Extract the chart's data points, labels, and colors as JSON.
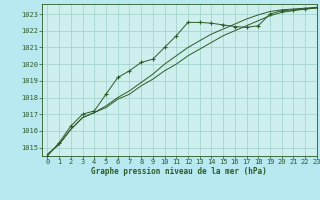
{
  "title": "Graphe pression niveau de la mer (hPa)",
  "bg_color": "#b8e8f0",
  "plot_bg_color": "#cdf0ee",
  "grid_color": "#9ecfca",
  "line_color": "#2d5a27",
  "xlim": [
    -0.5,
    23
  ],
  "ylim": [
    1014.5,
    1023.6
  ],
  "xticks": [
    0,
    1,
    2,
    3,
    4,
    5,
    6,
    7,
    8,
    9,
    10,
    11,
    12,
    13,
    14,
    15,
    16,
    17,
    18,
    19,
    20,
    21,
    22,
    23
  ],
  "yticks": [
    1015,
    1016,
    1017,
    1018,
    1019,
    1020,
    1021,
    1022,
    1023
  ],
  "series1_x": [
    0,
    1,
    2,
    3,
    4,
    5,
    6,
    7,
    8,
    9,
    10,
    11,
    12,
    13,
    14,
    15,
    16,
    17,
    18,
    19,
    20,
    21,
    22,
    23
  ],
  "series1_y": [
    1014.6,
    1015.2,
    1016.1,
    1016.8,
    1017.1,
    1017.4,
    1017.9,
    1018.2,
    1018.7,
    1019.1,
    1019.6,
    1020.0,
    1020.5,
    1020.9,
    1021.3,
    1021.7,
    1022.0,
    1022.3,
    1022.6,
    1022.9,
    1023.1,
    1023.2,
    1023.3,
    1023.35
  ],
  "series2_x": [
    0,
    1,
    2,
    3,
    4,
    5,
    6,
    7,
    8,
    9,
    10,
    11,
    12,
    13,
    14,
    15,
    16,
    17,
    18,
    19,
    20,
    21,
    22,
    23
  ],
  "series2_y": [
    1014.6,
    1015.2,
    1016.1,
    1016.8,
    1017.1,
    1017.5,
    1018.0,
    1018.4,
    1018.9,
    1019.4,
    1020.0,
    1020.5,
    1021.0,
    1021.4,
    1021.8,
    1022.1,
    1022.4,
    1022.7,
    1022.95,
    1023.15,
    1023.25,
    1023.3,
    1023.35,
    1023.4
  ],
  "series3_x": [
    0,
    1,
    2,
    3,
    4,
    5,
    6,
    7,
    8,
    9,
    10,
    11,
    12,
    13,
    14,
    15,
    16,
    17,
    18,
    19,
    20,
    21,
    22,
    23
  ],
  "series3_y": [
    1014.5,
    1015.3,
    1016.3,
    1017.0,
    1017.2,
    1018.2,
    1019.2,
    1019.6,
    1020.1,
    1020.3,
    1021.0,
    1021.7,
    1022.5,
    1022.5,
    1022.45,
    1022.35,
    1022.25,
    1022.2,
    1022.3,
    1023.0,
    1023.2,
    1023.25,
    1023.3,
    1023.4
  ]
}
